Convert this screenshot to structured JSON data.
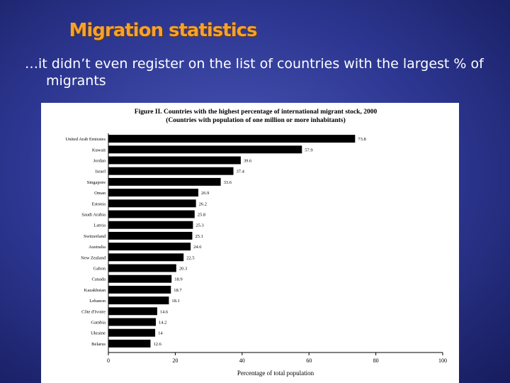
{
  "slide": {
    "title": "Migration statistics",
    "body": "…it didn’t even register on the list of countries with the largest % of migrants"
  },
  "chart_data": {
    "type": "bar",
    "orientation": "horizontal",
    "title": "Figure II. Countries with the highest percentage of international migrant stock, 2000",
    "subtitle": "(Countries with population of one million or more inhabitants)",
    "xlabel": "Percentage of total population",
    "categories": [
      "United Arab Emirates",
      "Kuwait",
      "Jordan",
      "Israel",
      "Singapore",
      "Oman",
      "Estonia",
      "Saudi Arabia",
      "Latvia",
      "Switzerland",
      "Australia",
      "New Zealand",
      "Gabon",
      "Canada",
      "Kazakhstan",
      "Lebanon",
      "Côte d'Ivoire",
      "Gambia",
      "Ukraine",
      "Belarus"
    ],
    "values": [
      73.8,
      57.9,
      39.6,
      37.4,
      33.6,
      26.9,
      26.2,
      25.8,
      25.3,
      25.1,
      24.6,
      22.5,
      20.3,
      18.9,
      18.7,
      18.1,
      14.6,
      14.2,
      14.0,
      12.6
    ],
    "color": "#000000",
    "xlim": [
      0,
      100
    ],
    "xticks": [
      0,
      20,
      40,
      60,
      80,
      100
    ]
  }
}
